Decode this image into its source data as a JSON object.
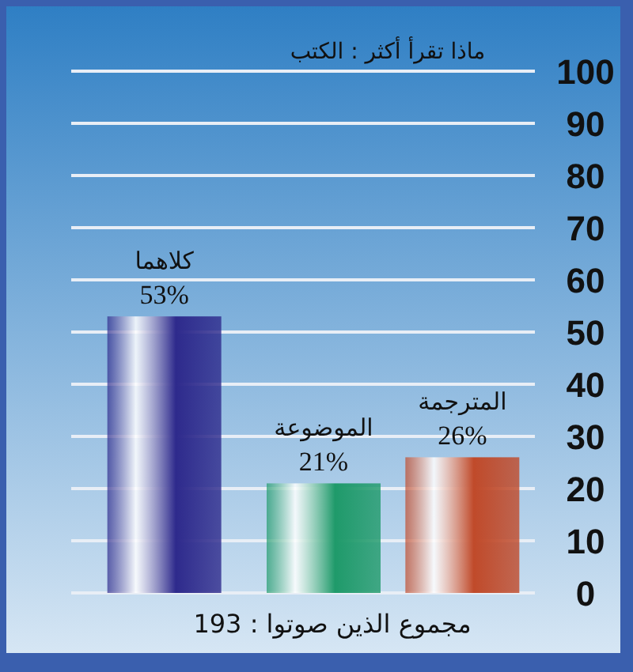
{
  "chart_data": {
    "type": "bar",
    "title": "ماذا تقرأ أكثر : الكتب",
    "categories": [
      "كلاهما",
      "الموضوعة",
      "المترجمة"
    ],
    "values": [
      53,
      21,
      26
    ],
    "colors": [
      "#2e2a8c",
      "#1f9a6a",
      "#c04a2a"
    ],
    "value_labels": [
      "53%",
      "21%",
      "26%"
    ],
    "ylim": [
      0,
      100
    ],
    "yticks": [
      0,
      10,
      20,
      30,
      40,
      50,
      60,
      70,
      80,
      90,
      100
    ],
    "grid": "y",
    "annotations": [
      "مجموع الذين صوتوا : 193"
    ]
  }
}
